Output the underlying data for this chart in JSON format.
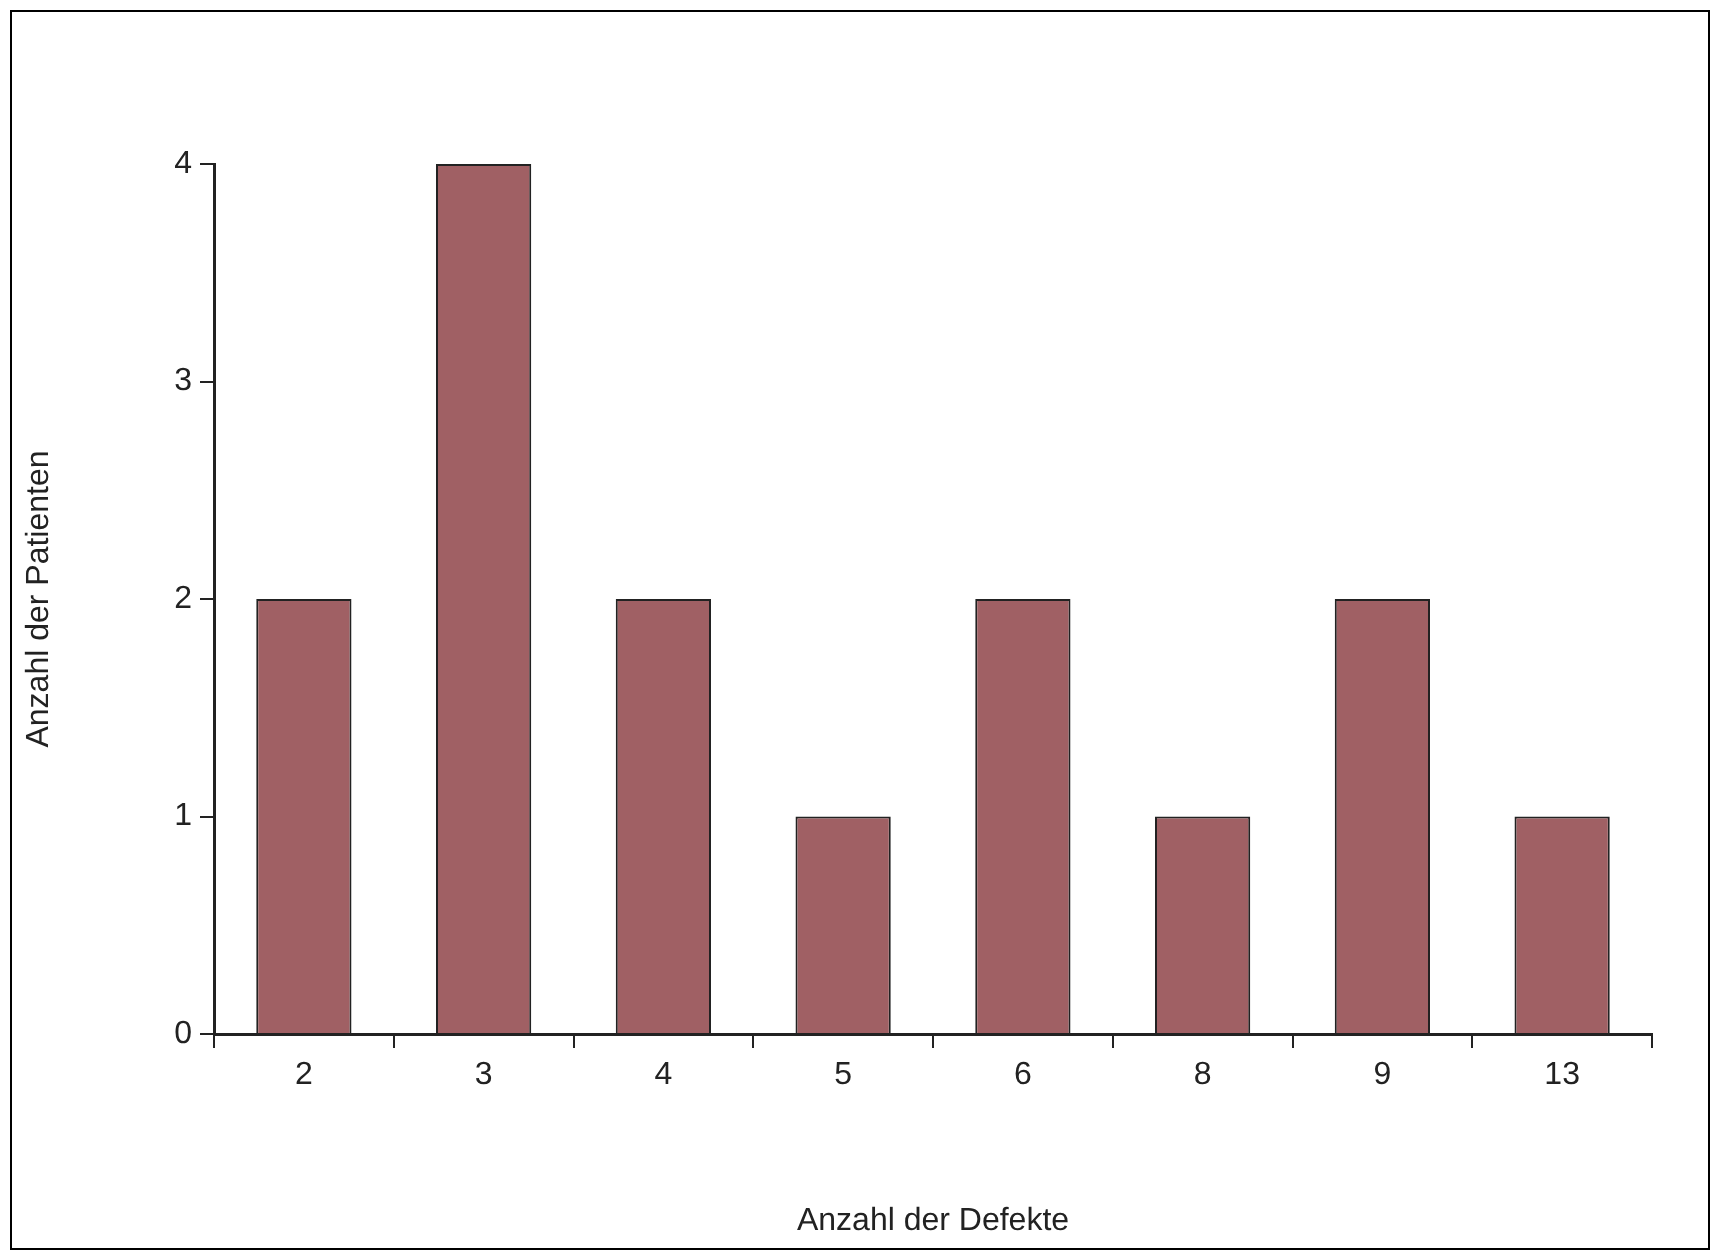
{
  "chart_data": {
    "type": "bar",
    "xlabel": "Anzahl der Defekte",
    "ylabel": "Anzahl der Patienten",
    "categories": [
      "2",
      "3",
      "4",
      "5",
      "6",
      "8",
      "9",
      "13"
    ],
    "values": [
      2,
      4,
      2,
      1,
      2,
      1,
      2,
      1
    ],
    "color": "#a06064",
    "ylim": [
      0,
      4
    ],
    "yticks": [
      0,
      1,
      2,
      3,
      4
    ],
    "grid": false,
    "legend": false
  }
}
